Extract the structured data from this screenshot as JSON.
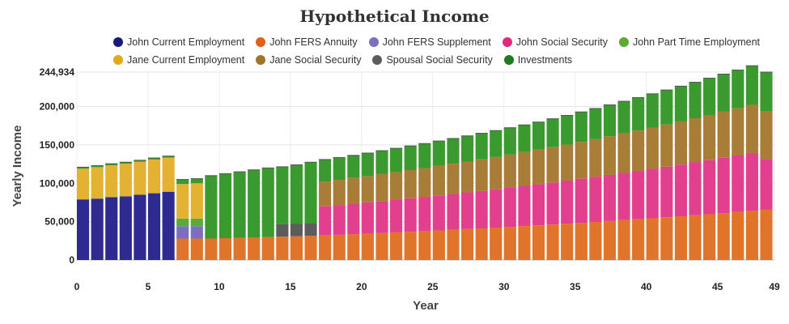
{
  "chart_data": {
    "type": "bar",
    "stacked": true,
    "title": "Hypothetical Income",
    "xlabel": "Year",
    "ylabel": "Yearly Income",
    "xlim": [
      0,
      49
    ],
    "ylim": [
      0,
      244934
    ],
    "x_ticks": [
      "0",
      "5",
      "10",
      "15",
      "20",
      "25",
      "30",
      "35",
      "40",
      "45",
      "49"
    ],
    "y_ticks": [
      "0",
      "50,000",
      "100,000",
      "150,000",
      "200,000",
      "244,934"
    ],
    "legend_position": "top",
    "grid": true,
    "years": [
      0,
      1,
      2,
      3,
      4,
      5,
      6,
      7,
      8,
      9,
      10,
      11,
      12,
      13,
      14,
      15,
      16,
      17,
      18,
      19,
      20,
      21,
      22,
      23,
      24,
      25,
      26,
      27,
      28,
      29,
      30,
      31,
      32,
      33,
      34,
      35,
      36,
      37,
      38,
      39,
      40,
      41,
      42,
      43,
      44,
      45,
      46,
      47,
      48
    ],
    "series": [
      {
        "name": "John Current Employment",
        "color": "#2e2a8f",
        "values": [
          79000,
          80000,
          82000,
          83000,
          85000,
          87000,
          89000,
          0,
          0,
          0,
          0,
          0,
          0,
          0,
          0,
          0,
          0,
          0,
          0,
          0,
          0,
          0,
          0,
          0,
          0,
          0,
          0,
          0,
          0,
          0,
          0,
          0,
          0,
          0,
          0,
          0,
          0,
          0,
          0,
          0,
          0,
          0,
          0,
          0,
          0,
          0,
          0,
          0,
          0
        ]
      },
      {
        "name": "John FERS Annuity",
        "color": "#e0742a",
        "values": [
          0,
          0,
          0,
          0,
          0,
          0,
          0,
          28000,
          28000,
          28000,
          28500,
          29000,
          29500,
          30000,
          30500,
          31000,
          31500,
          32000,
          32800,
          33600,
          34400,
          35200,
          36000,
          36800,
          37600,
          38500,
          39400,
          40300,
          41200,
          42200,
          43200,
          44200,
          45200,
          46300,
          47400,
          48500,
          49600,
          50800,
          52000,
          53200,
          54400,
          55700,
          57000,
          58300,
          59700,
          61100,
          62500,
          64000,
          65500
        ]
      },
      {
        "name": "John FERS Supplement",
        "color": "#7b6fbf",
        "values": [
          0,
          0,
          0,
          0,
          0,
          0,
          0,
          16000,
          16000,
          0,
          0,
          0,
          0,
          0,
          0,
          0,
          0,
          0,
          0,
          0,
          0,
          0,
          0,
          0,
          0,
          0,
          0,
          0,
          0,
          0,
          0,
          0,
          0,
          0,
          0,
          0,
          0,
          0,
          0,
          0,
          0,
          0,
          0,
          0,
          0,
          0,
          0,
          0,
          0
        ]
      },
      {
        "name": "John Social Security",
        "color": "#e2408e",
        "values": [
          0,
          0,
          0,
          0,
          0,
          0,
          0,
          0,
          0,
          0,
          0,
          0,
          0,
          0,
          0,
          0,
          0,
          38000,
          38900,
          39800,
          40700,
          41700,
          42700,
          43700,
          44700,
          45700,
          46700,
          47800,
          48900,
          50000,
          51200,
          52400,
          53600,
          54800,
          56100,
          57400,
          58700,
          60100,
          61500,
          62900,
          64400,
          65900,
          67400,
          68900,
          70500,
          72100,
          73700,
          75400,
          66000
        ]
      },
      {
        "name": "John Part Time Employment",
        "color": "#5aab36",
        "values": [
          0,
          0,
          0,
          0,
          0,
          0,
          0,
          10000,
          10000,
          0,
          0,
          0,
          0,
          0,
          0,
          0,
          0,
          0,
          0,
          0,
          0,
          0,
          0,
          0,
          0,
          0,
          0,
          0,
          0,
          0,
          0,
          0,
          0,
          0,
          0,
          0,
          0,
          0,
          0,
          0,
          0,
          0,
          0,
          0,
          0,
          0,
          0,
          0,
          0
        ]
      },
      {
        "name": "Jane Current Employment",
        "color": "#e3b232",
        "values": [
          40000,
          41000,
          41500,
          42500,
          43000,
          44000,
          44500,
          45000,
          46000,
          0,
          0,
          0,
          0,
          0,
          0,
          0,
          0,
          0,
          0,
          0,
          0,
          0,
          0,
          0,
          0,
          0,
          0,
          0,
          0,
          0,
          0,
          0,
          0,
          0,
          0,
          0,
          0,
          0,
          0,
          0,
          0,
          0,
          0,
          0,
          0,
          0,
          0,
          0,
          0
        ]
      },
      {
        "name": "Jane Social Security",
        "color": "#a87d38",
        "values": [
          0,
          0,
          0,
          0,
          0,
          0,
          0,
          0,
          0,
          0,
          0,
          0,
          0,
          0,
          0,
          0,
          0,
          32000,
          32800,
          33500,
          34300,
          35100,
          35900,
          36700,
          37500,
          38400,
          39300,
          40200,
          41100,
          42000,
          43000,
          44000,
          45000,
          46000,
          47000,
          48100,
          49200,
          50300,
          51400,
          52600,
          53800,
          55000,
          56200,
          57500,
          58800,
          60100,
          61400,
          62800,
          62000
        ]
      },
      {
        "name": "Spousal Social Security",
        "color": "#5c5c5c",
        "values": [
          0,
          0,
          0,
          0,
          0,
          0,
          0,
          0,
          0,
          0,
          0,
          0,
          0,
          0,
          16000,
          16000,
          16000,
          0,
          0,
          0,
          0,
          0,
          0,
          0,
          0,
          0,
          0,
          0,
          0,
          0,
          0,
          0,
          0,
          0,
          0,
          0,
          0,
          0,
          0,
          0,
          0,
          0,
          0,
          0,
          0,
          0,
          0,
          0,
          0
        ]
      },
      {
        "name": "Investments",
        "color": "#3b9a2f",
        "values": [
          2000,
          2000,
          2000,
          2000,
          2000,
          2000,
          2000,
          6000,
          6000,
          82000,
          84000,
          86000,
          88000,
          90000,
          75000,
          77000,
          80000,
          29000,
          29000,
          29500,
          30000,
          30500,
          31000,
          31500,
          32000,
          32500,
          33000,
          33500,
          34000,
          34500,
          35000,
          35500,
          36000,
          37000,
          38000,
          39000,
          40000,
          41000,
          42000,
          43000,
          44000,
          45000,
          46000,
          47000,
          48000,
          49000,
          50000,
          51000,
          51434
        ]
      }
    ]
  }
}
